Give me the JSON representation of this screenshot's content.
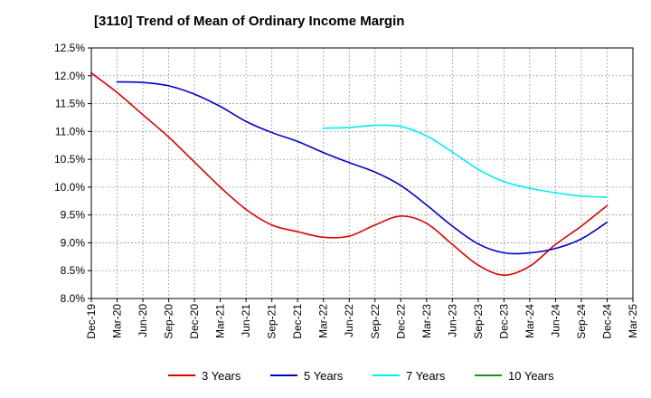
{
  "chart_data": {
    "type": "line",
    "title": "[3110]  Trend of Mean of Ordinary Income Margin",
    "xlabel": "",
    "ylabel": "",
    "x_ticks": [
      "Dec-19",
      "Mar-20",
      "Jun-20",
      "Sep-20",
      "Dec-20",
      "Mar-21",
      "Jun-21",
      "Sep-21",
      "Dec-21",
      "Mar-22",
      "Jun-22",
      "Sep-22",
      "Dec-22",
      "Mar-23",
      "Jun-23",
      "Sep-23",
      "Dec-23",
      "Mar-24",
      "Jun-24",
      "Sep-24",
      "Dec-24",
      "Mar-25"
    ],
    "y_ticks": [
      "12.5%",
      "12.0%",
      "11.5%",
      "11.0%",
      "10.5%",
      "10.0%",
      "9.5%",
      "9.0%",
      "8.5%",
      "8.0%"
    ],
    "ylim": [
      8.0,
      12.5
    ],
    "grid": true,
    "legend_position": "bottom",
    "series": [
      {
        "name": "3 Years",
        "color": "#dd0000",
        "x": [
          "Dec-19",
          "Mar-20",
          "Jun-20",
          "Sep-20",
          "Dec-20",
          "Mar-21",
          "Jun-21",
          "Sep-21",
          "Dec-21",
          "Mar-22",
          "Jun-22",
          "Sep-22",
          "Dec-22",
          "Mar-23",
          "Jun-23",
          "Sep-23",
          "Dec-23",
          "Mar-24",
          "Jun-24",
          "Sep-24",
          "Dec-24"
        ],
        "values": [
          12.05,
          11.7,
          11.3,
          10.9,
          10.45,
          10.0,
          9.6,
          9.32,
          9.2,
          9.1,
          9.12,
          9.32,
          9.48,
          9.35,
          8.97,
          8.6,
          8.42,
          8.58,
          8.97,
          9.3,
          9.67
        ]
      },
      {
        "name": "5 Years",
        "color": "#0000cc",
        "x": [
          "Mar-20",
          "Jun-20",
          "Sep-20",
          "Dec-20",
          "Mar-21",
          "Jun-21",
          "Sep-21",
          "Dec-21",
          "Mar-22",
          "Jun-22",
          "Sep-22",
          "Dec-22",
          "Mar-23",
          "Jun-23",
          "Sep-23",
          "Dec-23",
          "Mar-24",
          "Jun-24",
          "Sep-24",
          "Dec-24"
        ],
        "values": [
          11.89,
          11.88,
          11.82,
          11.67,
          11.45,
          11.18,
          10.98,
          10.82,
          10.62,
          10.44,
          10.27,
          10.03,
          9.68,
          9.3,
          8.98,
          8.82,
          8.82,
          8.9,
          9.07,
          9.37
        ]
      },
      {
        "name": "7 Years",
        "color": "#00eeee",
        "x": [
          "Mar-22",
          "Jun-22",
          "Sep-22",
          "Dec-22",
          "Mar-23",
          "Jun-23",
          "Sep-23",
          "Dec-23",
          "Mar-24",
          "Jun-24",
          "Sep-24",
          "Dec-24"
        ],
        "values": [
          11.06,
          11.07,
          11.11,
          11.09,
          10.92,
          10.63,
          10.32,
          10.1,
          9.98,
          9.9,
          9.84,
          9.82
        ]
      },
      {
        "name": "10 Years",
        "color": "#228b22",
        "x": [],
        "values": []
      }
    ]
  }
}
